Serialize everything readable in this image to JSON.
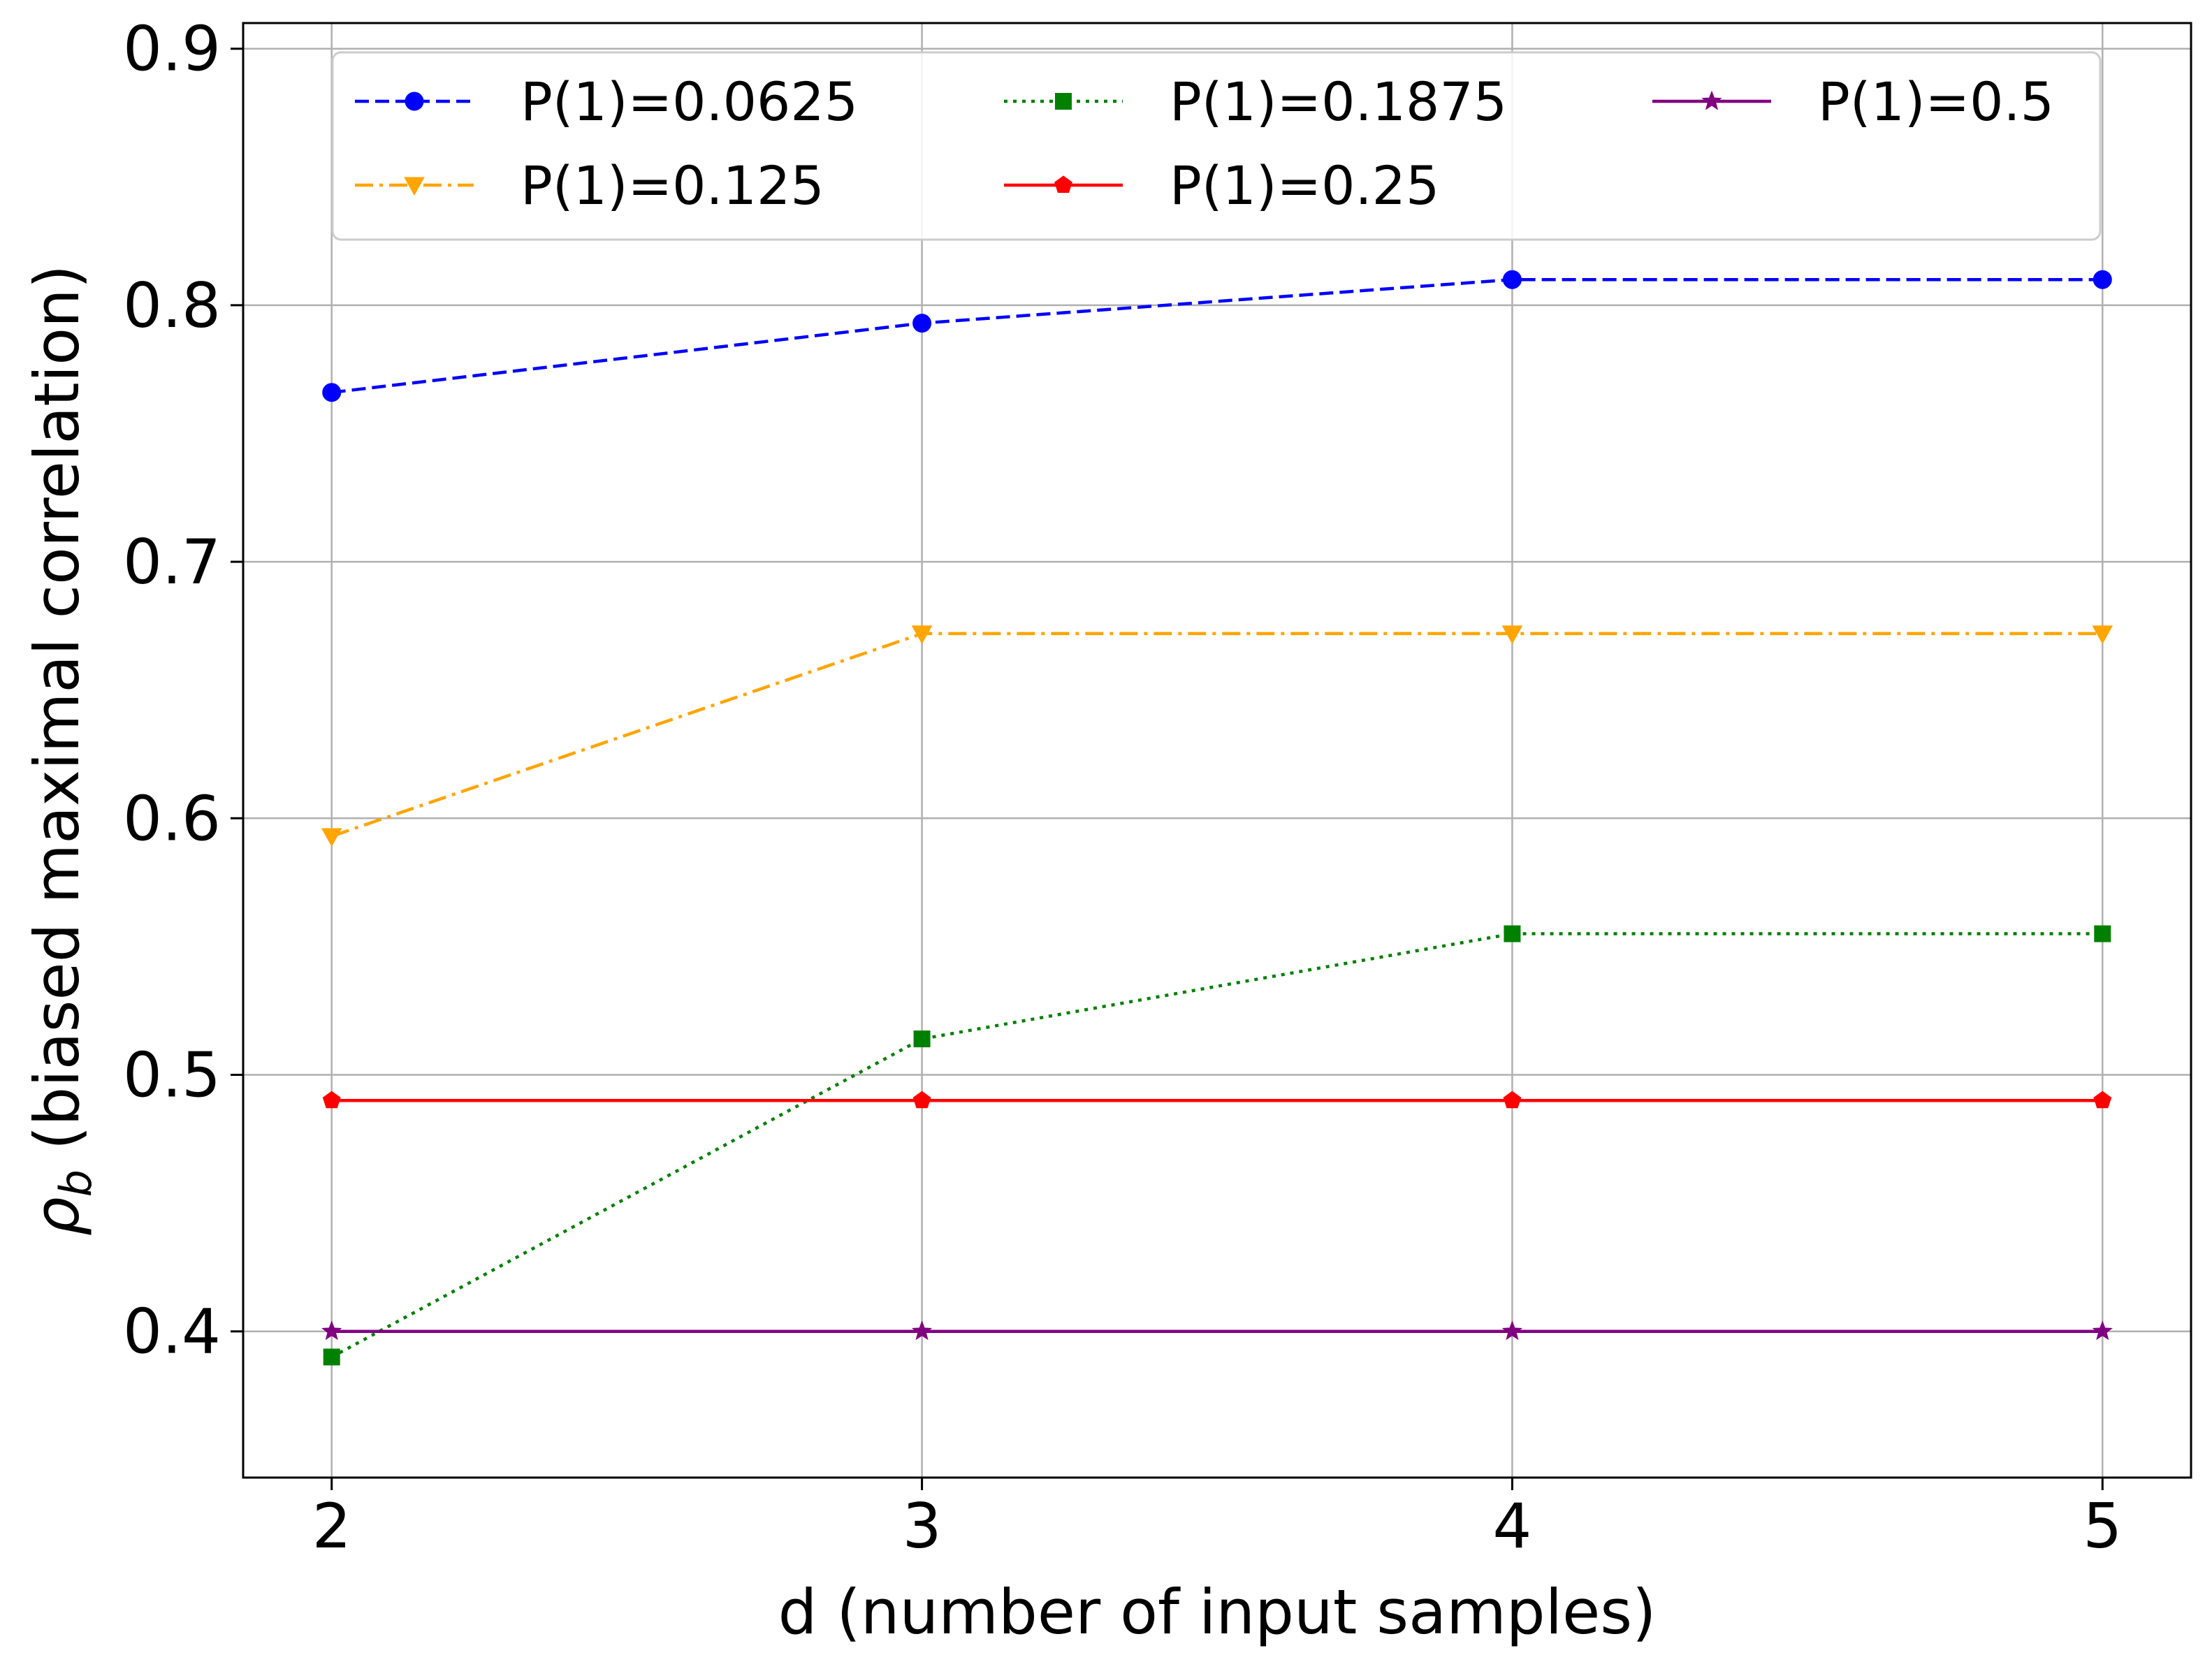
{
  "chart_data": {
    "type": "line",
    "title": "",
    "xlabel": "d (number of input samples)",
    "ylabel_symbol": "ρ",
    "ylabel_subscript": "b",
    "ylabel_text": " (biased maximal correlation)",
    "x": [
      2,
      3,
      4,
      5
    ],
    "xticks": [
      "2",
      "3",
      "4",
      "5"
    ],
    "yticks": [
      "0.4",
      "0.5",
      "0.6",
      "0.7",
      "0.8",
      "0.9"
    ],
    "ytick_values": [
      0.4,
      0.5,
      0.6,
      0.7,
      0.8,
      0.9
    ],
    "xlim": [
      1.85,
      5.15
    ],
    "ylim": [
      0.343,
      0.91
    ],
    "grid": true,
    "legend_position": "top",
    "series": [
      {
        "name": "P(1)=0.0625",
        "values": [
          0.766,
          0.793,
          0.81,
          0.81
        ],
        "color": "#0000ff",
        "dash": "dashed",
        "marker": "circle"
      },
      {
        "name": "P(1)=0.125",
        "values": [
          0.593,
          0.672,
          0.672,
          0.672
        ],
        "color": "#ffa500",
        "dash": "dashdot",
        "marker": "triangle-down"
      },
      {
        "name": "P(1)=0.1875",
        "values": [
          0.39,
          0.514,
          0.555,
          0.555
        ],
        "color": "#008000",
        "dash": "dotted",
        "marker": "square"
      },
      {
        "name": "P(1)=0.25",
        "values": [
          0.49,
          0.49,
          0.49,
          0.49
        ],
        "color": "#ff0000",
        "dash": "solid",
        "marker": "pentagon"
      },
      {
        "name": "P(1)=0.5",
        "values": [
          0.4,
          0.4,
          0.4,
          0.4
        ],
        "color": "#800080",
        "dash": "solid",
        "marker": "star"
      }
    ]
  }
}
